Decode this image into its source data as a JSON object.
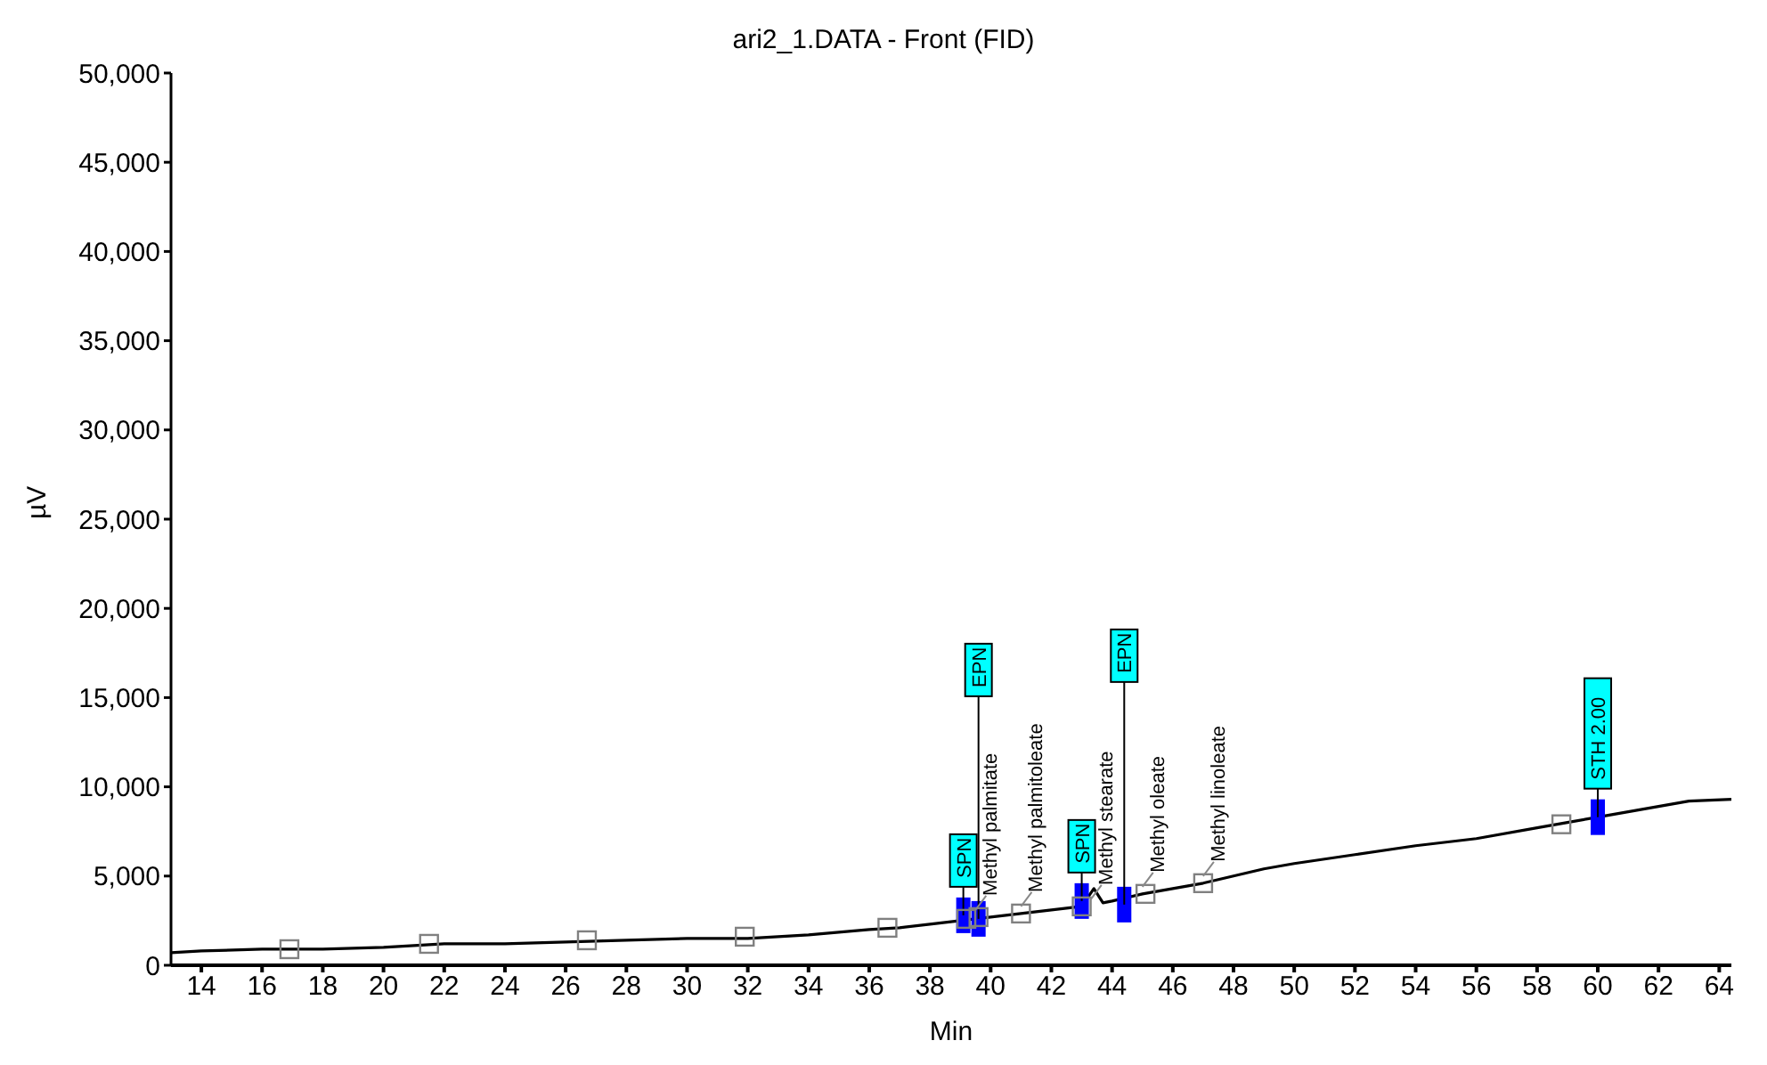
{
  "chart_data": {
    "type": "line",
    "title": "ari2_1.DATA - Front (FID)",
    "xlabel": "Min",
    "ylabel": "µV",
    "xlim": [
      13,
      64.4
    ],
    "xticks": [
      14,
      16,
      18,
      20,
      22,
      24,
      26,
      28,
      30,
      32,
      34,
      36,
      38,
      40,
      42,
      44,
      46,
      48,
      50,
      52,
      54,
      56,
      58,
      60,
      62,
      64
    ],
    "ylim": [
      0,
      50000
    ],
    "yticks": [
      {
        "value": 0,
        "label": "0"
      },
      {
        "value": 5000,
        "label": "5,000"
      },
      {
        "value": 10000,
        "label": "10,000"
      },
      {
        "value": 15000,
        "label": "15,000"
      },
      {
        "value": 20000,
        "label": "20,000"
      },
      {
        "value": 25000,
        "label": "25,000"
      },
      {
        "value": 30000,
        "label": "30,000"
      },
      {
        "value": 35000,
        "label": "35,000"
      },
      {
        "value": 40000,
        "label": "40,000"
      },
      {
        "value": 45000,
        "label": "45,000"
      },
      {
        "value": 50000,
        "label": "50,000"
      }
    ],
    "grid": false,
    "legend": false,
    "series": [
      {
        "color": "#000000",
        "marker": "none",
        "x": [
          13,
          14,
          16,
          17,
          18,
          20,
          22,
          24,
          26,
          28,
          30,
          32,
          34,
          36,
          37,
          38,
          39,
          40,
          41,
          42,
          43,
          43.4,
          43.7,
          44,
          45,
          46,
          47,
          48,
          49,
          50,
          52,
          54,
          56,
          58,
          59,
          60,
          61,
          62,
          63,
          64.4
        ],
        "values": [
          700,
          800,
          900,
          900,
          900,
          1000,
          1200,
          1200,
          1300,
          1400,
          1500,
          1500,
          1700,
          2000,
          2100,
          2300,
          2500,
          2700,
          2900,
          3100,
          3300,
          4300,
          3500,
          3600,
          4000,
          4300,
          4600,
          5000,
          5400,
          5700,
          6200,
          6700,
          7100,
          7700,
          8000,
          8300,
          8600,
          8900,
          9200,
          9300
        ]
      },
      {
        "type": "scatter",
        "color": "#0000ff",
        "marker": "square",
        "x": [
          39.1,
          39.6,
          43.0,
          44.4,
          60.0
        ],
        "values": [
          2800,
          2600,
          3600,
          3400,
          8300
        ],
        "value_labels": [
          "SPN",
          "EPN",
          "SPN",
          "EPN",
          "STH 2.00"
        ]
      },
      {
        "type": "scatter",
        "color": "#808080",
        "marker": "square",
        "x": [
          16.9,
          21.5,
          26.7,
          31.9,
          36.6,
          39.2,
          39.6,
          41.0,
          43.0,
          45.1,
          47.0,
          58.8
        ],
        "values": [
          900,
          1200,
          1400,
          1600,
          2100,
          2600,
          2700,
          2900,
          3300,
          4000,
          4600,
          7900
        ]
      }
    ],
    "annotations": [
      {
        "text": "Methyl palmitate",
        "x": 39.5,
        "y": 2700
      },
      {
        "text": "Methyl palmitoleate",
        "x": 41.0,
        "y": 2900
      },
      {
        "text": "Methyl stearate",
        "x": 43.3,
        "y": 3300
      },
      {
        "text": "Methyl oleate",
        "x": 45.0,
        "y": 4000
      },
      {
        "text": "Methyl linoleate",
        "x": 47.0,
        "y": 4600
      }
    ]
  }
}
